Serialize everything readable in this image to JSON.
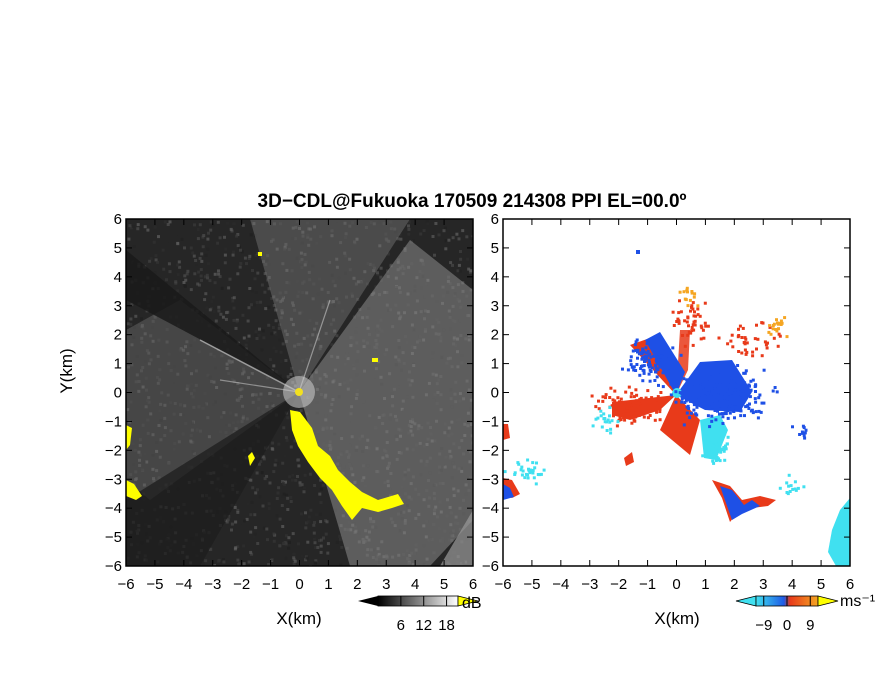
{
  "chart_data": [
    {
      "type": "heatmap",
      "title": "3D−CDL@Fukuoka 170509 214308 PPI EL=00.0º",
      "xlabel": "X(km)",
      "ylabel": "Y(km)",
      "xlim": [
        -6,
        6
      ],
      "ylim": [
        -6,
        6
      ],
      "x_ticks": [
        "−6",
        "−5",
        "−4",
        "−3",
        "−2",
        "−1",
        "0",
        "1",
        "2",
        "3",
        "4",
        "5",
        "6"
      ],
      "y_ticks": [
        "6",
        "5",
        "4",
        "3",
        "2",
        "1",
        "0",
        "−1",
        "−2",
        "−3",
        "−4",
        "−5",
        "−6"
      ],
      "colorbar": {
        "unit": "dB",
        "tick_labels": [
          "6",
          "12",
          "18"
        ],
        "ticks": [
          6,
          12,
          18
        ],
        "range": [
          0,
          21
        ],
        "colors": [
          "#000000",
          "#ffffff"
        ],
        "overflow_color": "#ffff00"
      },
      "background_color": "#262626",
      "highlight_color": "#ffff00"
    },
    {
      "type": "heatmap",
      "xlabel": "X(km)",
      "xlim": [
        -6,
        6
      ],
      "ylim": [
        -6,
        6
      ],
      "x_ticks": [
        "−6",
        "−5",
        "−4",
        "−3",
        "−2",
        "−1",
        "0",
        "1",
        "2",
        "3",
        "4",
        "5",
        "6"
      ],
      "y_ticks": [
        "6",
        "5",
        "4",
        "3",
        "2",
        "1",
        "0",
        "−1",
        "−2",
        "−3",
        "−4",
        "−5",
        "−6"
      ],
      "colorbar": {
        "unit": "ms⁻¹",
        "tick_labels": [
          "−9",
          "0",
          "9"
        ],
        "ticks": [
          -9,
          0,
          9
        ],
        "range": [
          -12,
          12
        ],
        "colors": [
          "#40e0f0",
          "#1e5ae6",
          "#e83a1a",
          "#f5a623"
        ]
      },
      "background_color": "#ffffff",
      "colors": {
        "toward": "#1e50e6",
        "away": "#e83a1a",
        "strong_toward": "#40e0f0",
        "strong_away": "#f5a623"
      }
    }
  ]
}
